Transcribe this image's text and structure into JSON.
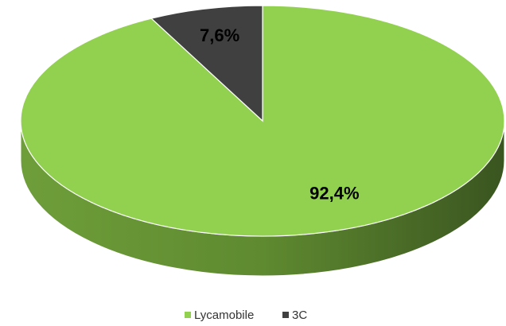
{
  "chart_data": {
    "type": "pie",
    "three_d": true,
    "categories": [
      "Lycamobile",
      "3C"
    ],
    "values": [
      92.4,
      7.6
    ],
    "value_labels": [
      "92,4%",
      "7,6%"
    ],
    "colors": [
      "#92d050",
      "#404040"
    ],
    "legend": "bottom"
  }
}
